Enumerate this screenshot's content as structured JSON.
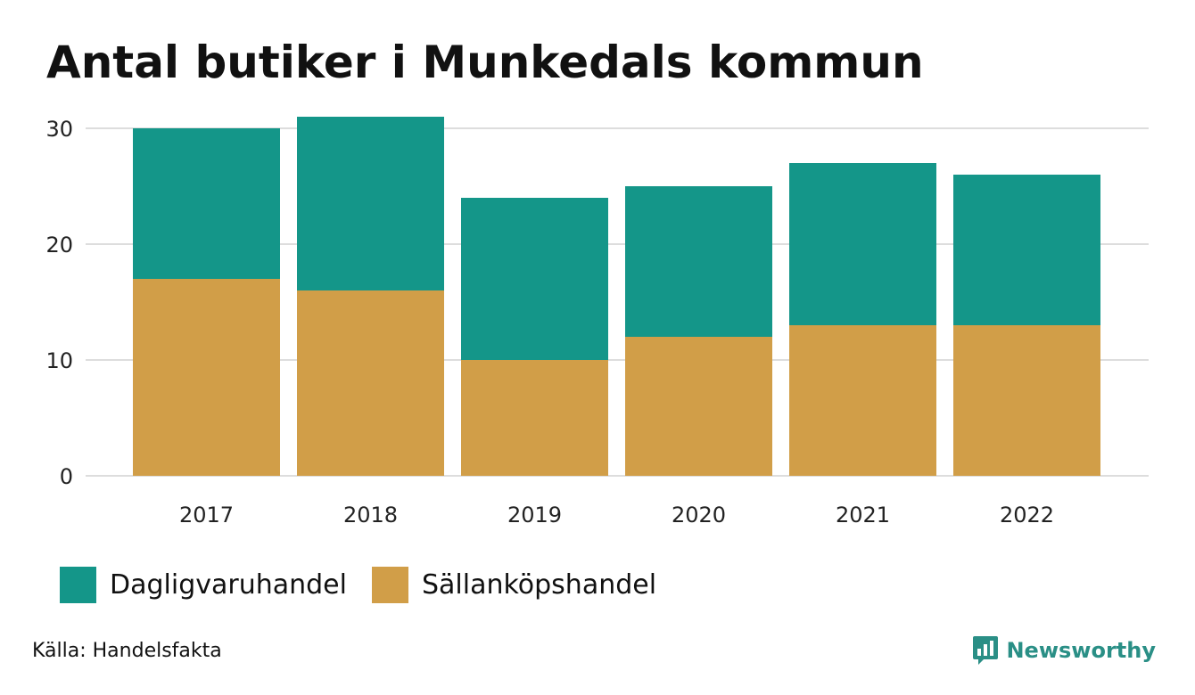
{
  "chart_data": {
    "type": "bar",
    "stacked": true,
    "title": "Antal butiker i Munkedals kommun",
    "categories": [
      "2017",
      "2018",
      "2019",
      "2020",
      "2021",
      "2022"
    ],
    "series": [
      {
        "name": "Sällanköpshandel",
        "color": "#d19e48",
        "values": [
          17,
          16,
          10,
          12,
          13,
          13
        ]
      },
      {
        "name": "Dagligvaruhandel",
        "color": "#149689",
        "values": [
          13,
          15,
          14,
          13,
          14,
          13
        ]
      }
    ],
    "xlabel": "",
    "ylabel": "",
    "ylim": [
      0,
      31
    ],
    "yticks": [
      0,
      10,
      20,
      30
    ],
    "grid": true,
    "legend_position": "bottom-left"
  },
  "legend": {
    "items": [
      {
        "label": "Dagligvaruhandel",
        "color": "#149689"
      },
      {
        "label": "Sällanköpshandel",
        "color": "#d19e48"
      }
    ]
  },
  "footer": {
    "source": "Källa: Handelsfakta",
    "brand": "Newsworthy",
    "brand_color": "#2a8f86"
  }
}
